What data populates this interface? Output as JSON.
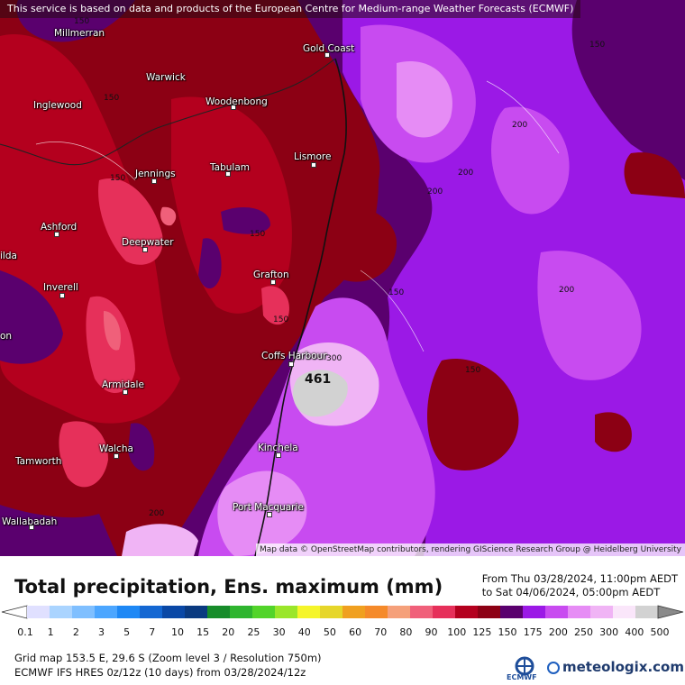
{
  "notice": "This service is based on data and products of the European Centre for Medium-range Weather Forecasts (ECMWF)",
  "attribution": "Map data © OpenStreetMap contributors, rendering GIScience Research Group @ Heidelberg University",
  "places": [
    {
      "name": "Millmerran"
    },
    {
      "name": "Gold Coast"
    },
    {
      "name": "Warwick"
    },
    {
      "name": "Inglewood"
    },
    {
      "name": "Woodenbong"
    },
    {
      "name": "Lismore"
    },
    {
      "name": "Tabulam"
    },
    {
      "name": "Jennings"
    },
    {
      "name": "Ashford"
    },
    {
      "name": "Deepwater"
    },
    {
      "name": "ilda"
    },
    {
      "name": "Grafton"
    },
    {
      "name": "Inverell"
    },
    {
      "name": "on"
    },
    {
      "name": "Coffs Harbour"
    },
    {
      "name": "Armidale"
    },
    {
      "name": "Walcha"
    },
    {
      "name": "Tamworth"
    },
    {
      "name": "Kinchela"
    },
    {
      "name": "Port Macquarie"
    },
    {
      "name": "Wallabadah"
    }
  ],
  "contour_labels": [
    "150",
    "150",
    "150",
    "150",
    "150",
    "150",
    "150",
    "150",
    "200",
    "200",
    "200",
    "200",
    "200",
    "300"
  ],
  "max_value_label": "461",
  "legend": {
    "title": "Total precipitation, Ens. maximum (mm)",
    "from": "From Thu 03/28/2024, 11:00pm AEDT",
    "to": "to Sat 04/06/2024, 05:00pm AEDT",
    "ticks": [
      "0.1",
      "1",
      "2",
      "3",
      "5",
      "7",
      "10",
      "15",
      "20",
      "25",
      "30",
      "40",
      "50",
      "60",
      "70",
      "80",
      "90",
      "100",
      "125",
      "150",
      "175",
      "200",
      "250",
      "300",
      "400",
      "500"
    ],
    "colors": [
      "#e0e0ff",
      "#aad4ff",
      "#7fbfff",
      "#4ca6ff",
      "#1e88f5",
      "#1467d2",
      "#0a48a6",
      "#0a3a80",
      "#178c2a",
      "#2fb52f",
      "#52d42a",
      "#9ae62a",
      "#f5f52a",
      "#e6d62a",
      "#f0a020",
      "#f58a2a",
      "#f5a07a",
      "#f0607a",
      "#e6305a",
      "#b4001e",
      "#8c0014",
      "#5a006e",
      "#9b19e6",
      "#c84bf0",
      "#e68cf5",
      "#f0b4f5",
      "#fae6fa",
      "#d2d2d2"
    ],
    "grid_info": "Grid map 153.5 E, 29.6 S (Zoom level 3 / Resolution 750m)",
    "model_info": "ECMWF IFS HRES 0z/12z (10 days) from 03/28/2024/12z"
  },
  "logos": {
    "ecmwf": "ECMWF",
    "meteologix": "meteologix.com"
  }
}
